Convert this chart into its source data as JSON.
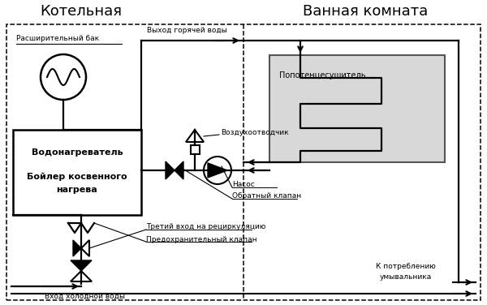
{
  "title_left": "Котельная",
  "title_right": "Ванная комната",
  "label_expansion_tank": "Расширительный бак",
  "label_hot_water_out": "Выход горячей воды",
  "label_air_vent": "Воздухоотводчик",
  "label_boiler_l1": "Водонагреватель",
  "label_boiler_l2": "Бойлер косвенного",
  "label_boiler_l3": "нагрева",
  "label_pump": "Насос",
  "label_check_valve": "Обратный клапан",
  "label_third_inlet": "Третий вход на рециркуляцию",
  "label_safety_valve": "Предохранительный клапан",
  "label_cold_water": "Вход холодной воды",
  "label_towel_rail": "Попотенцесушитель",
  "label_sink": "К потреблению\nумывальника",
  "bg_color": "#ffffff",
  "lc": "#000000",
  "lw": 1.6,
  "lwd": 1.1,
  "title_fs": 13,
  "label_fs": 6.5
}
